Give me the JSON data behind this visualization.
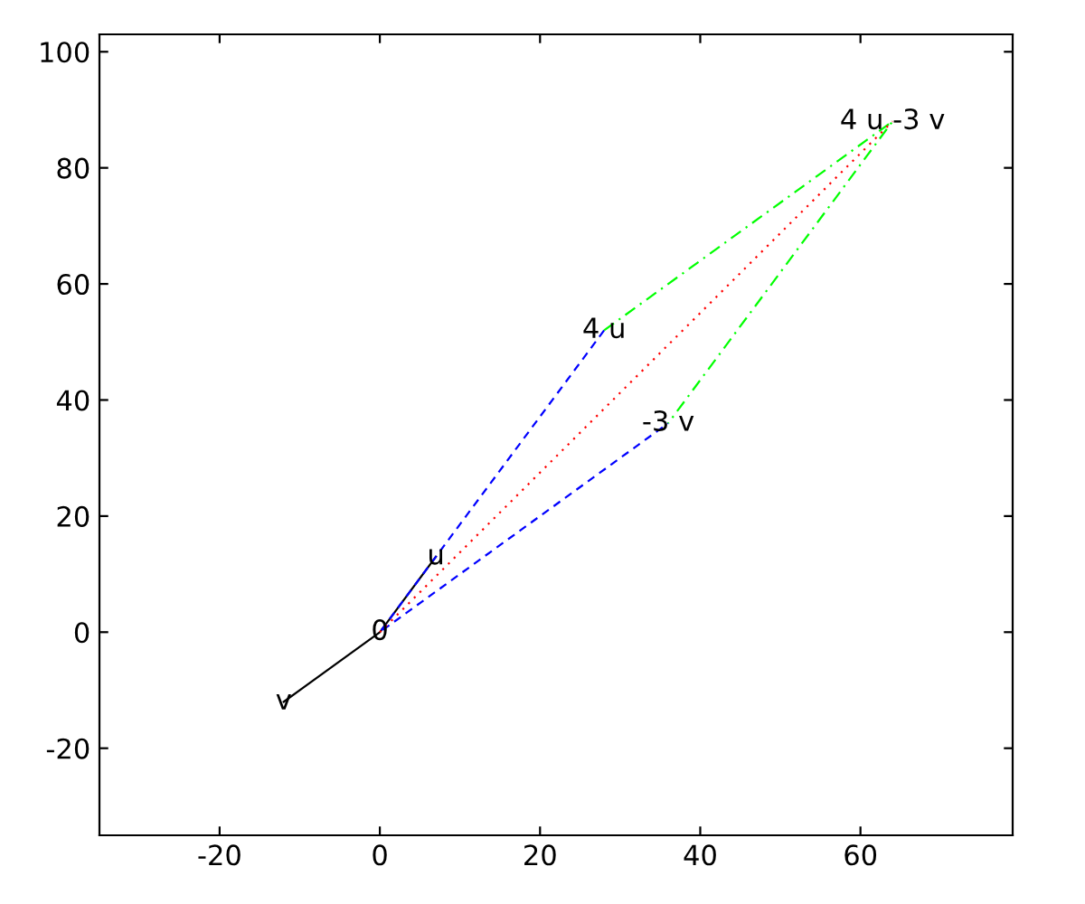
{
  "chart_data": {
    "type": "line",
    "xlim": [
      -35,
      79
    ],
    "ylim": [
      -35,
      103
    ],
    "xticks": [
      -20,
      0,
      20,
      40,
      60
    ],
    "yticks": [
      -20,
      0,
      20,
      40,
      60,
      80,
      100
    ],
    "grid": false,
    "legend": false,
    "series": [
      {
        "color": "#000000",
        "line_style": "solid",
        "x": [
          7,
          0,
          -12
        ],
        "values": [
          13,
          0,
          -12
        ]
      },
      {
        "color": "#0000ff",
        "line_style": "dashed",
        "x": [
          28,
          0,
          36
        ],
        "values": [
          52,
          0,
          36
        ]
      },
      {
        "color": "#00ff00",
        "line_style": "dashdot",
        "x": [
          28,
          64,
          36
        ],
        "values": [
          52,
          88,
          36
        ]
      },
      {
        "color": "#ff0000",
        "line_style": "dotted",
        "x": [
          0,
          64
        ],
        "values": [
          0,
          88
        ]
      }
    ],
    "annotations": [
      {
        "text": "0",
        "x": 0,
        "y": 0
      },
      {
        "text": "u",
        "x": 7,
        "y": 13
      },
      {
        "text": "v",
        "x": -12,
        "y": -12
      },
      {
        "text": "4 u",
        "x": 28,
        "y": 52
      },
      {
        "text": "-3 v",
        "x": 36,
        "y": 36
      },
      {
        "text": "4 u -3 v",
        "x": 64,
        "y": 88
      }
    ]
  }
}
